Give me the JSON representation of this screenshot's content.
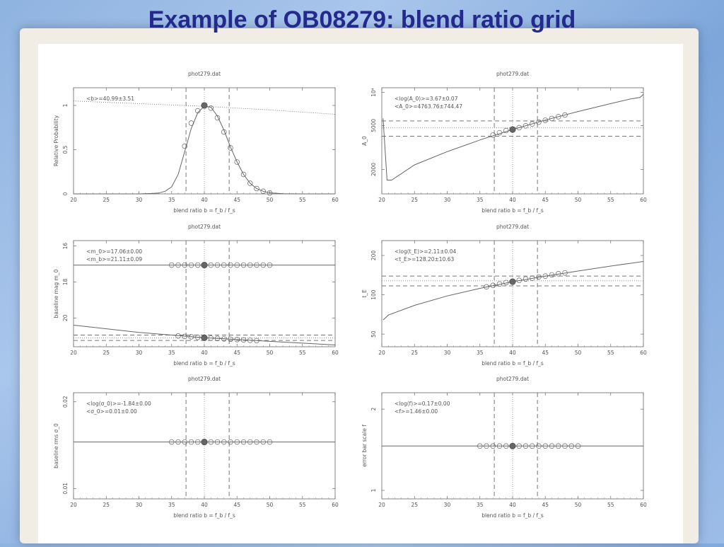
{
  "slide": {
    "title": "Example of OB08279: blend ratio grid"
  },
  "chart_data": [
    {
      "id": "p1",
      "type": "line",
      "title": "phot279.dat",
      "xlabel": "blend ratio b = f_b / f_s",
      "ylabel": "Relative Probability",
      "xlim": [
        20,
        60
      ],
      "ylim": [
        0,
        1.2
      ],
      "yscale": "linear",
      "xticks": [
        "20",
        "25",
        "30",
        "35",
        "40",
        "45",
        "50",
        "55",
        "60"
      ],
      "yticks": [
        {
          "v": 0,
          "label": "0"
        },
        {
          "v": 0.5,
          "label": "0.5"
        },
        {
          "v": 1,
          "label": "1"
        }
      ],
      "annotations": [
        "<b>=40.99±3.51"
      ],
      "vlines_dashed": [
        37.2,
        43.8
      ],
      "vline_dotted": 40,
      "series": [
        {
          "style": "dotted",
          "x": [
            20,
            30,
            40,
            50,
            60
          ],
          "y": [
            1.05,
            1.02,
            0.99,
            0.95,
            0.9
          ]
        },
        {
          "style": "solid",
          "x": [
            20,
            30,
            32,
            33,
            34,
            35,
            36,
            37,
            38,
            39,
            40,
            41,
            42,
            43,
            44,
            45,
            46,
            47,
            48,
            49,
            50,
            52,
            55,
            60
          ],
          "y": [
            0,
            0,
            0.005,
            0.01,
            0.03,
            0.08,
            0.22,
            0.48,
            0.74,
            0.92,
            0.99,
            0.98,
            0.88,
            0.72,
            0.53,
            0.36,
            0.22,
            0.12,
            0.06,
            0.03,
            0.012,
            0.002,
            0,
            0
          ]
        }
      ],
      "markers": {
        "x": [
          37,
          38,
          39,
          40,
          41,
          42,
          43,
          44,
          45,
          46,
          47,
          48,
          49,
          50
        ],
        "y": [
          0.54,
          0.8,
          0.94,
          1.0,
          0.97,
          0.86,
          0.7,
          0.52,
          0.36,
          0.22,
          0.12,
          0.06,
          0.03,
          0.01
        ]
      },
      "highlight": {
        "x": 40,
        "y": 1.0
      }
    },
    {
      "id": "p2",
      "type": "line",
      "title": "phot279.dat",
      "xlabel": "blend ratio b = f_b / f_s",
      "ylabel": "A_0",
      "xlim": [
        20,
        60
      ],
      "ylim": [
        1200,
        11000
      ],
      "yscale": "log",
      "xticks": [
        "20",
        "25",
        "30",
        "35",
        "40",
        "45",
        "50",
        "55",
        "60"
      ],
      "yticks": [
        {
          "v": 2000,
          "label": "2000"
        },
        {
          "v": 5000,
          "label": "5000"
        },
        {
          "v": 10000,
          "label": "10⁴"
        }
      ],
      "annotations": [
        "<log(A_0)>=3.67±0.07",
        "<A_0>=4763.76±744.47"
      ],
      "vlines_dashed": [
        37.2,
        43.8
      ],
      "vline_dotted": 40,
      "hlines_dashed": [
        5500,
        4000
      ],
      "hline_dotted": 4763,
      "series": [
        {
          "style": "solid",
          "x": [
            20.2,
            20.8,
            21.5,
            25,
            30,
            35,
            40,
            45,
            50,
            55,
            58,
            59.5,
            60
          ],
          "y": [
            5800,
            1600,
            1600,
            2200,
            2900,
            3700,
            4600,
            5600,
            6700,
            7900,
            8700,
            9000,
            9600
          ]
        }
      ],
      "markers": {
        "x": [
          37,
          38,
          39,
          40,
          41,
          42,
          43,
          44,
          45,
          46,
          47,
          48
        ],
        "y": [
          4100,
          4300,
          4500,
          4600,
          4780,
          4970,
          5170,
          5370,
          5580,
          5790,
          6010,
          6230
        ]
      },
      "highlight": {
        "x": 40,
        "y": 4600
      }
    },
    {
      "id": "p3",
      "type": "line",
      "title": "phot279.dat",
      "xlabel": "blend ratio b = f_b / f_s",
      "ylabel": "baseline mag m_0",
      "xlim": [
        20,
        60
      ],
      "ylim": [
        21.6,
        15.7
      ],
      "yscale": "linear",
      "xticks": [
        "20",
        "25",
        "30",
        "35",
        "40",
        "45",
        "50",
        "55",
        "60"
      ],
      "yticks": [
        {
          "v": 16,
          "label": "16"
        },
        {
          "v": 18,
          "label": "18"
        },
        {
          "v": 20,
          "label": "20"
        }
      ],
      "annotations": [
        "<m_0>=17.06±0.00",
        "<m_b>=21.11±0.09"
      ],
      "vlines_dashed": [
        37.2,
        43.8
      ],
      "vline_dotted": 40,
      "hlines_dashed": [
        20.95,
        21.25
      ],
      "hline_dotted": 21.11,
      "series": [
        {
          "style": "solid",
          "x": [
            20,
            60
          ],
          "y": [
            17.06,
            17.06
          ]
        },
        {
          "style": "solid",
          "x": [
            20,
            25,
            30,
            35,
            40,
            45,
            50,
            55,
            60
          ],
          "y": [
            20.4,
            20.6,
            20.8,
            20.95,
            21.1,
            21.2,
            21.3,
            21.4,
            21.5
          ]
        }
      ],
      "markers": {
        "x": [
          35,
          36,
          37,
          38,
          39,
          40,
          41,
          42,
          43,
          44,
          45,
          46,
          47,
          48,
          49,
          50
        ],
        "y": [
          17.06,
          17.06,
          17.06,
          17.06,
          17.06,
          17.06,
          17.06,
          17.06,
          17.06,
          17.06,
          17.06,
          17.06,
          17.06,
          17.06,
          17.06,
          17.06
        ]
      },
      "markers2": {
        "x": [
          36,
          37,
          38,
          39,
          40,
          41,
          42,
          43,
          44,
          45,
          46,
          47,
          48
        ],
        "y": [
          21.0,
          21.03,
          21.05,
          21.08,
          21.1,
          21.12,
          21.14,
          21.16,
          21.18,
          21.2,
          21.22,
          21.24,
          21.26
        ]
      },
      "highlight": {
        "x": 40,
        "y": 17.06
      },
      "highlight2": {
        "x": 40,
        "y": 21.1
      }
    },
    {
      "id": "p4",
      "type": "line",
      "title": "phot279.dat",
      "xlabel": "blend ratio b = f_b / f_s",
      "ylabel": "t_E",
      "xlim": [
        20,
        60
      ],
      "ylim": [
        40,
        260
      ],
      "yscale": "log",
      "xticks": [
        "20",
        "25",
        "30",
        "35",
        "40",
        "45",
        "50",
        "55",
        "60"
      ],
      "yticks": [
        {
          "v": 50,
          "label": "50"
        },
        {
          "v": 100,
          "label": "100"
        },
        {
          "v": 200,
          "label": "200"
        }
      ],
      "annotations": [
        "<log(t_E)>=2.11±0.04",
        "<t_E>=128.20±10.63"
      ],
      "vlines_dashed": [
        37.2,
        43.8
      ],
      "vline_dotted": 40,
      "hlines_dashed": [
        139,
        117
      ],
      "hline_dotted": 128,
      "series": [
        {
          "style": "solid",
          "x": [
            20.2,
            21,
            25,
            30,
            35,
            40,
            45,
            50,
            55,
            60
          ],
          "y": [
            64,
            70,
            83,
            98,
            112,
            126,
            139,
            152,
            166,
            180
          ]
        }
      ],
      "markers": {
        "x": [
          36,
          37,
          38,
          39,
          40,
          41,
          42,
          43,
          44,
          45,
          46,
          47,
          48
        ],
        "y": [
          115,
          118,
          121,
          124,
          126,
          129,
          132,
          134,
          137,
          139,
          142,
          145,
          147
        ]
      },
      "highlight": {
        "x": 40,
        "y": 126
      }
    },
    {
      "id": "p5",
      "type": "line",
      "title": "phot279.dat",
      "xlabel": "blend ratio b = f_b / f_s",
      "ylabel": "baseline rms σ_0",
      "xlim": [
        20,
        60
      ],
      "ylim": [
        0.0092,
        0.0215
      ],
      "yscale": "log",
      "xticks": [
        "20",
        "25",
        "30",
        "35",
        "40",
        "45",
        "50",
        "55",
        "60"
      ],
      "yticks": [
        {
          "v": 0.01,
          "label": "0.01"
        },
        {
          "v": 0.02,
          "label": "0.02"
        }
      ],
      "annotations": [
        "<log(σ_0)>=-1.84±0.00",
        "<σ_0>=0.01±0.00"
      ],
      "vlines_dashed": [
        37.2,
        43.8
      ],
      "vline_dotted": 40,
      "series": [
        {
          "style": "solid",
          "x": [
            20,
            60
          ],
          "y": [
            0.0145,
            0.0145
          ]
        }
      ],
      "markers": {
        "x": [
          35,
          36,
          37,
          38,
          39,
          40,
          41,
          42,
          43,
          44,
          45,
          46,
          47,
          48,
          49,
          50
        ],
        "y": [
          0.0145,
          0.0145,
          0.0145,
          0.0145,
          0.0145,
          0.0145,
          0.0145,
          0.0145,
          0.0145,
          0.0145,
          0.0145,
          0.0145,
          0.0145,
          0.0145,
          0.0145,
          0.0145
        ]
      },
      "highlight": {
        "x": 40,
        "y": 0.0145
      }
    },
    {
      "id": "p6",
      "type": "line",
      "title": "phot279.dat",
      "xlabel": "blend ratio b = f_b / f_s",
      "ylabel": "error bar scale f",
      "xlim": [
        20,
        60
      ],
      "ylim": [
        0.93,
        2.3
      ],
      "yscale": "log",
      "xticks": [
        "20",
        "25",
        "30",
        "35",
        "40",
        "45",
        "50",
        "55",
        "60"
      ],
      "yticks": [
        {
          "v": 1,
          "label": "1"
        },
        {
          "v": 2,
          "label": "2"
        }
      ],
      "annotations": [
        "<log(f)>=0.17±0.00",
        "<f>=1.46±0.00"
      ],
      "vlines_dashed": [
        37.2,
        43.8
      ],
      "vline_dotted": 40,
      "series": [
        {
          "style": "solid",
          "x": [
            20,
            60
          ],
          "y": [
            1.46,
            1.46
          ]
        }
      ],
      "markers": {
        "x": [
          35,
          36,
          37,
          38,
          39,
          40,
          41,
          42,
          43,
          44,
          45,
          46,
          47,
          48,
          49,
          50
        ],
        "y": [
          1.46,
          1.46,
          1.46,
          1.46,
          1.46,
          1.46,
          1.46,
          1.46,
          1.46,
          1.46,
          1.46,
          1.46,
          1.46,
          1.46,
          1.46,
          1.46
        ]
      },
      "highlight": {
        "x": 40,
        "y": 1.46
      }
    }
  ]
}
